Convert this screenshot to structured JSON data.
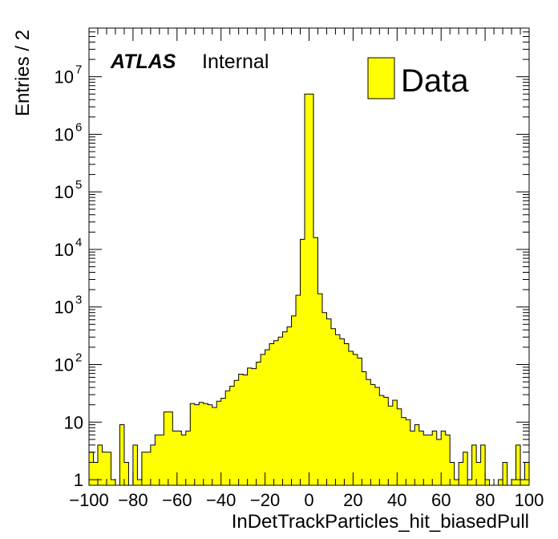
{
  "chart_data": {
    "type": "bar",
    "xlabel": "InDetTrackParticles_hit_biasedPull",
    "ylabel": "Entries / 2",
    "xlim": [
      -100,
      100
    ],
    "ylim": [
      0.8,
      70000000
    ],
    "y_scale": "log",
    "bin_width": 2,
    "x_ticks": [
      -100,
      -80,
      -60,
      -40,
      -20,
      0,
      20,
      40,
      60,
      80,
      100
    ],
    "x_tick_labels": [
      "−100",
      "−80",
      "−60",
      "−40",
      "−20",
      "0",
      "20",
      "40",
      "60",
      "80",
      "100"
    ],
    "y_ticks": [
      {
        "value": 1,
        "base": "1",
        "exp": ""
      },
      {
        "value": 10,
        "base": "10",
        "exp": ""
      },
      {
        "value": 100,
        "base": "10",
        "exp": "2"
      },
      {
        "value": 1000,
        "base": "10",
        "exp": "3"
      },
      {
        "value": 10000,
        "base": "10",
        "exp": "4"
      },
      {
        "value": 100000,
        "base": "10",
        "exp": "5"
      },
      {
        "value": 1000000,
        "base": "10",
        "exp": "6"
      },
      {
        "value": 10000000,
        "base": "10",
        "exp": "7"
      }
    ],
    "label_main": "ATLAS",
    "label_sub": "Internal",
    "legend": [
      {
        "name": "Data",
        "color": "#ffff00"
      }
    ],
    "legend_position": "top-right",
    "fill_color": "#ffff00",
    "line_color": "#000000",
    "series": [
      {
        "name": "Data",
        "bin_edges_start": -100,
        "values": [
          3,
          2,
          4,
          3,
          3,
          1,
          0,
          9,
          2,
          0,
          4,
          1,
          3,
          3,
          4,
          6,
          6,
          15,
          15,
          7,
          7,
          6,
          7,
          21,
          20,
          22,
          21,
          20,
          18,
          23,
          26,
          35,
          42,
          53,
          68,
          66,
          87,
          85,
          110,
          150,
          180,
          230,
          260,
          300,
          370,
          450,
          700,
          1600,
          15000,
          5000000,
          5000000,
          16000,
          1700,
          800,
          620,
          420,
          330,
          280,
          230,
          170,
          150,
          130,
          75,
          55,
          45,
          40,
          29,
          27,
          19,
          24,
          17,
          12,
          11,
          7,
          9,
          7,
          6,
          6,
          7,
          5,
          7,
          6,
          2,
          1,
          2,
          3,
          1,
          4,
          2,
          4,
          1,
          0,
          0,
          1,
          2,
          0,
          1,
          4,
          1,
          2
        ]
      }
    ]
  }
}
